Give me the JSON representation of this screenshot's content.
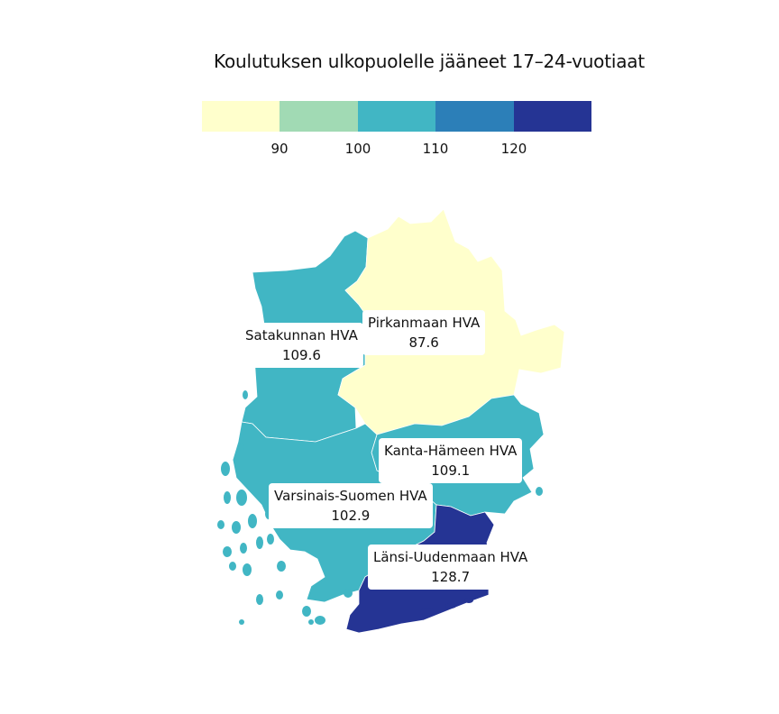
{
  "title": "Koulutuksen ulkopuolelle jääneet 17–24-vuotiaat",
  "legend": {
    "colors": [
      "#ffffcc",
      "#a1dab4",
      "#41b6c4",
      "#2c7fb8",
      "#253494"
    ],
    "ticks": [
      "90",
      "100",
      "110",
      "120"
    ]
  },
  "regions": [
    {
      "name": "Satakunnan HVA",
      "value": "109.6",
      "color": "#41b6c4"
    },
    {
      "name": "Pirkanmaan HVA",
      "value": "87.6",
      "color": "#ffffcc"
    },
    {
      "name": "Kanta-Hämeen HVA",
      "value": "109.1",
      "color": "#41b6c4"
    },
    {
      "name": "Varsinais-Suomen HVA",
      "value": "102.9",
      "color": "#41b6c4"
    },
    {
      "name": "Länsi-Uudenmaan HVA",
      "value": "128.7",
      "color": "#253494"
    }
  ]
}
